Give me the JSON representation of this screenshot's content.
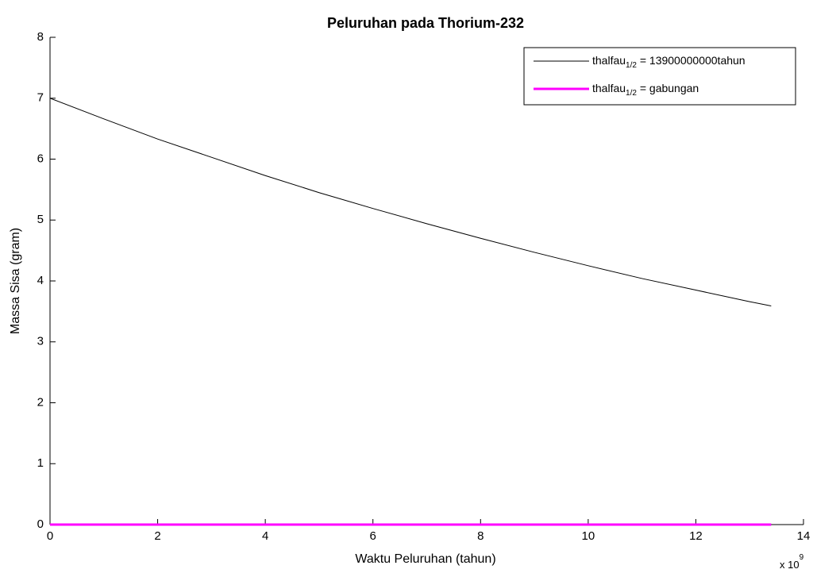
{
  "chart_data": {
    "type": "line",
    "title": "Peluruhan pada Thorium-232",
    "x_label": "Waktu Peluruhan (tahun)",
    "y_label": "Massa Sisa (gram)",
    "x_multiplier": {
      "base": "x 10",
      "exponent": "9"
    },
    "x": [
      0,
      1,
      2,
      3,
      4,
      5,
      6,
      7,
      8,
      9,
      10,
      11,
      12,
      13,
      13.4
    ],
    "series": [
      {
        "name": [
          "thalfau",
          "1/2",
          " = 13900000000tahun"
        ],
        "color": "#000000",
        "values": [
          7,
          6.66,
          6.33,
          6.03,
          5.73,
          5.45,
          5.19,
          4.94,
          4.7,
          4.47,
          4.25,
          4.04,
          3.85,
          3.66,
          3.59
        ]
      },
      {
        "name": [
          "thalfau",
          "1/2",
          " = gabungan"
        ],
        "color": "#ff00ff",
        "values": [
          0,
          0,
          0,
          0,
          0,
          0,
          0,
          0,
          0,
          0,
          0,
          0,
          0,
          0,
          0
        ]
      }
    ],
    "xlim": [
      0,
      14
    ],
    "ylim": [
      0,
      8
    ],
    "xticks": [
      0,
      2,
      4,
      6,
      8,
      10,
      12,
      14
    ],
    "yticks": [
      0,
      1,
      2,
      3,
      4,
      5,
      6,
      7,
      8
    ],
    "grid": false,
    "legend": "top-right"
  }
}
